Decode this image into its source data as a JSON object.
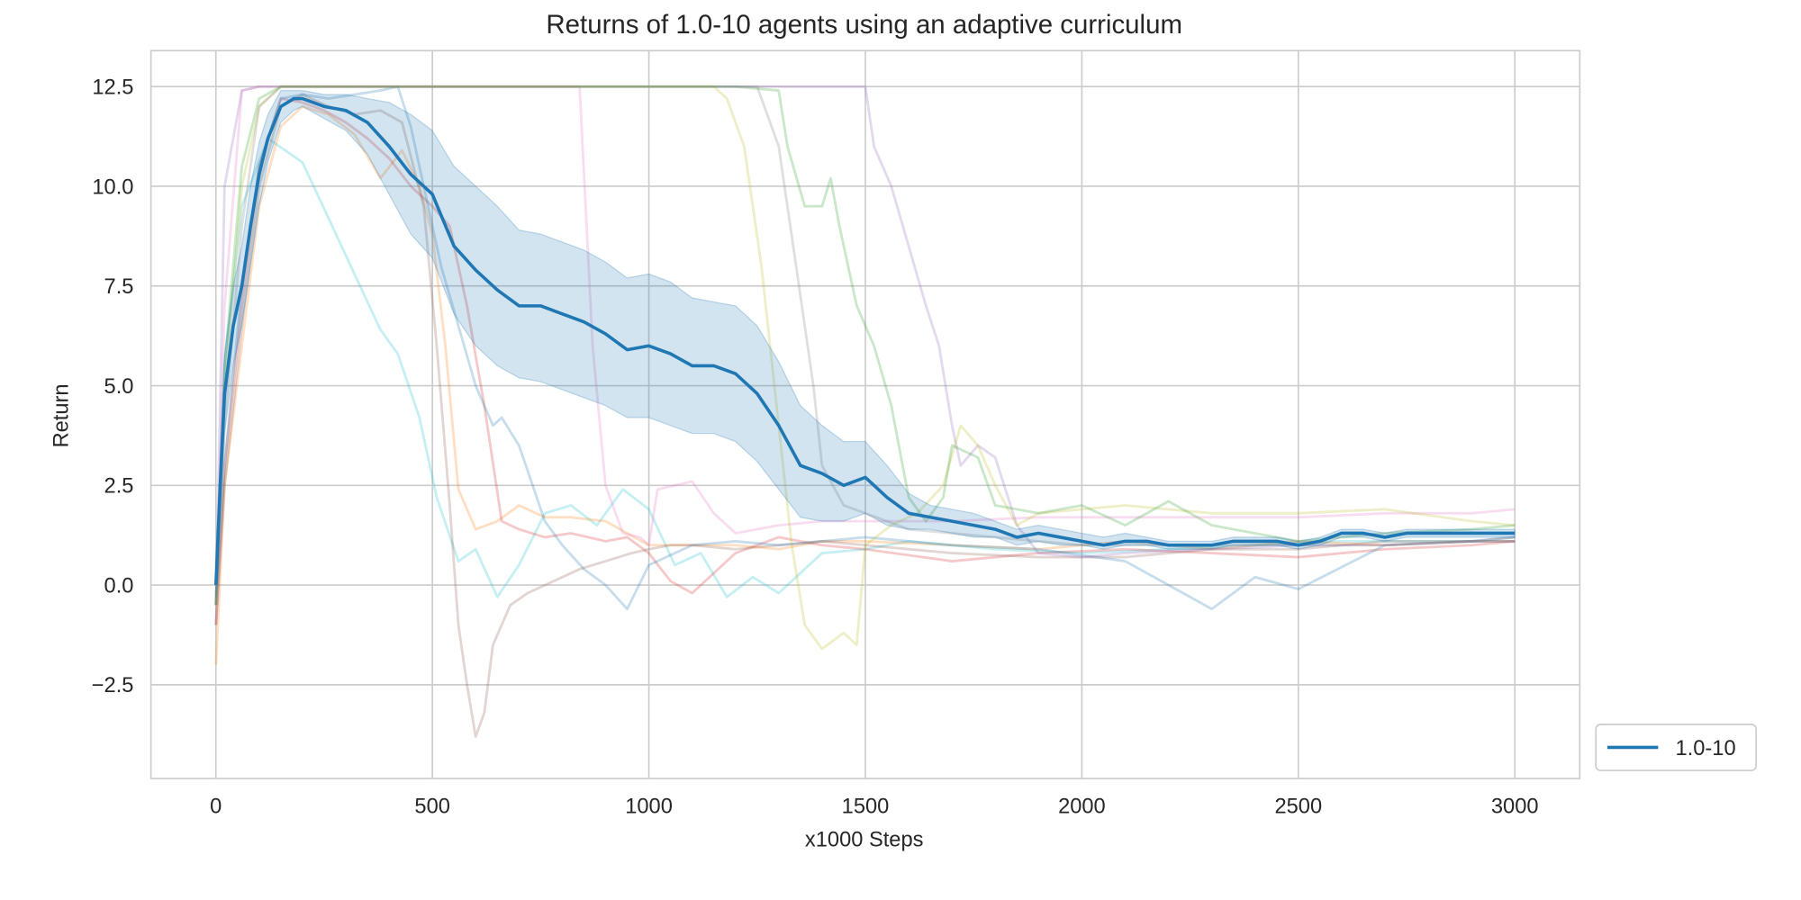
{
  "chart_data": {
    "type": "line",
    "title": "Returns of 1.0-10 agents using an adaptive curriculum",
    "xlabel": "x1000 Steps",
    "ylabel": "Return",
    "xlim": [
      -150,
      3150
    ],
    "ylim": [
      -4.85,
      13.4
    ],
    "xticks": [
      0,
      500,
      1000,
      1500,
      2000,
      2500,
      3000
    ],
    "xtick_labels": [
      "0",
      "500",
      "1000",
      "1500",
      "2000",
      "2500",
      "3000"
    ],
    "yticks": [
      -2.5,
      0.0,
      2.5,
      5.0,
      7.5,
      10.0,
      12.5
    ],
    "ytick_labels": [
      "−2.5",
      "0.0",
      "2.5",
      "5.0",
      "7.5",
      "10.0",
      "12.5"
    ],
    "grid": true,
    "legend_position": "outside-lower-right",
    "legend": [
      {
        "label": "1.0-10",
        "color": "#1f77b4"
      }
    ],
    "mean_series": {
      "name": "1.0-10",
      "color": "#1f77b4",
      "x": [
        0,
        10,
        20,
        40,
        60,
        80,
        100,
        120,
        150,
        180,
        200,
        250,
        300,
        350,
        400,
        450,
        500,
        550,
        600,
        650,
        700,
        750,
        800,
        850,
        900,
        950,
        1000,
        1050,
        1100,
        1150,
        1200,
        1250,
        1300,
        1350,
        1400,
        1450,
        1500,
        1550,
        1600,
        1650,
        1700,
        1750,
        1800,
        1850,
        1900,
        1950,
        2000,
        2050,
        2100,
        2150,
        2200,
        2250,
        2300,
        2350,
        2400,
        2450,
        2500,
        2550,
        2600,
        2650,
        2700,
        2750,
        2800,
        2850,
        2900,
        2950,
        3000
      ],
      "y": [
        0.0,
        2.5,
        4.8,
        6.5,
        7.5,
        9.0,
        10.3,
        11.2,
        12.0,
        12.2,
        12.2,
        12.0,
        11.9,
        11.6,
        11.0,
        10.3,
        9.8,
        8.5,
        7.9,
        7.4,
        7.0,
        7.0,
        6.8,
        6.6,
        6.3,
        5.9,
        6.0,
        5.8,
        5.5,
        5.5,
        5.3,
        4.8,
        4.0,
        3.0,
        2.8,
        2.5,
        2.7,
        2.2,
        1.8,
        1.7,
        1.6,
        1.5,
        1.4,
        1.2,
        1.3,
        1.2,
        1.1,
        1.0,
        1.1,
        1.1,
        1.0,
        1.0,
        1.0,
        1.1,
        1.1,
        1.1,
        1.0,
        1.1,
        1.3,
        1.3,
        1.2,
        1.3,
        1.3,
        1.3,
        1.3,
        1.3,
        1.3
      ],
      "band_lower": [
        -0.3,
        1.8,
        3.8,
        5.5,
        6.5,
        8.0,
        9.5,
        10.6,
        11.6,
        11.9,
        12.0,
        11.7,
        11.4,
        10.8,
        9.8,
        8.8,
        8.2,
        6.8,
        6.0,
        5.5,
        5.2,
        5.1,
        4.9,
        4.7,
        4.5,
        4.2,
        4.2,
        4.0,
        3.8,
        3.8,
        3.6,
        3.1,
        2.4,
        1.7,
        1.6,
        1.6,
        1.8,
        1.5,
        1.4,
        1.4,
        1.3,
        1.2,
        1.2,
        1.0,
        1.1,
        1.0,
        1.0,
        0.9,
        1.0,
        1.0,
        0.9,
        0.9,
        0.9,
        1.0,
        1.0,
        1.0,
        0.9,
        1.0,
        1.2,
        1.2,
        1.1,
        1.2,
        1.2,
        1.2,
        1.2,
        1.2,
        1.2
      ],
      "band_upper": [
        0.3,
        3.2,
        5.8,
        7.5,
        8.5,
        10.0,
        11.1,
        11.8,
        12.4,
        12.4,
        12.4,
        12.3,
        12.3,
        12.2,
        12.1,
        11.8,
        11.4,
        10.5,
        10.0,
        9.5,
        8.9,
        8.8,
        8.6,
        8.4,
        8.1,
        7.7,
        7.8,
        7.6,
        7.2,
        7.1,
        7.0,
        6.5,
        5.6,
        4.5,
        4.0,
        3.6,
        3.6,
        3.0,
        2.3,
        2.0,
        1.9,
        1.8,
        1.6,
        1.4,
        1.5,
        1.4,
        1.3,
        1.2,
        1.3,
        1.2,
        1.1,
        1.1,
        1.1,
        1.2,
        1.2,
        1.2,
        1.1,
        1.2,
        1.4,
        1.4,
        1.3,
        1.4,
        1.4,
        1.4,
        1.4,
        1.4,
        1.4
      ]
    },
    "individual_runs": [
      {
        "color": "#17becf",
        "x": [
          0,
          20,
          60,
          120,
          200,
          260,
          320,
          380,
          420,
          470,
          510,
          560,
          600,
          650,
          700,
          760,
          820,
          880,
          940,
          1000,
          1060,
          1120,
          1180,
          1240,
          1300,
          1400,
          1500,
          1600,
          1800,
          2000,
          2200,
          2400,
          2600,
          2800,
          3000
        ],
        "y": [
          -0.5,
          5.5,
          9.5,
          11.2,
          10.6,
          9.2,
          7.8,
          6.4,
          5.8,
          4.2,
          2.2,
          0.6,
          0.9,
          -0.3,
          0.5,
          1.8,
          2.0,
          1.5,
          2.4,
          1.9,
          0.5,
          0.8,
          -0.3,
          0.2,
          -0.2,
          0.8,
          0.9,
          1.1,
          0.9,
          0.8,
          0.9,
          1.0,
          1.1,
          1.1,
          1.1
        ]
      },
      {
        "color": "#ff7f0e",
        "x": [
          0,
          20,
          60,
          100,
          150,
          200,
          260,
          320,
          380,
          430,
          470,
          500,
          530,
          560,
          600,
          650,
          700,
          760,
          820,
          900,
          1000,
          1100,
          1200,
          1300,
          1400,
          1500,
          1700,
          1900,
          2100,
          2300,
          2500,
          2700,
          2900,
          3000
        ],
        "y": [
          -2.0,
          2.5,
          6.0,
          9.5,
          11.5,
          12.0,
          11.8,
          11.3,
          10.2,
          10.9,
          10.0,
          8.8,
          6.0,
          2.4,
          1.4,
          1.6,
          2.0,
          1.7,
          1.7,
          1.6,
          1.0,
          1.0,
          1.0,
          0.9,
          1.1,
          1.1,
          1.0,
          0.9,
          1.1,
          0.9,
          1.1,
          1.0,
          1.1,
          1.1
        ]
      },
      {
        "color": "#d62728",
        "x": [
          0,
          20,
          60,
          100,
          150,
          200,
          250,
          300,
          350,
          400,
          450,
          500,
          540,
          580,
          620,
          660,
          700,
          760,
          820,
          900,
          950,
          1000,
          1050,
          1100,
          1150,
          1200,
          1300,
          1400,
          1500,
          1700,
          1900,
          2100,
          2300,
          2500,
          2700,
          2900,
          3000
        ],
        "y": [
          -1.0,
          3.0,
          7.0,
          10.5,
          12.2,
          12.1,
          11.9,
          11.6,
          11.2,
          10.7,
          10.0,
          9.5,
          9.0,
          7.0,
          4.5,
          1.6,
          1.4,
          1.2,
          1.3,
          1.1,
          1.2,
          0.8,
          0.1,
          -0.2,
          0.3,
          0.8,
          1.2,
          1.0,
          0.9,
          0.6,
          0.8,
          0.9,
          0.8,
          0.7,
          0.9,
          1.0,
          1.1
        ]
      },
      {
        "color": "#8c564b",
        "x": [
          0,
          20,
          60,
          100,
          150,
          200,
          260,
          320,
          380,
          430,
          480,
          510,
          540,
          560,
          580,
          600,
          620,
          640,
          680,
          720,
          780,
          840,
          900,
          960,
          1000,
          1050,
          1100,
          1200,
          1300,
          1400,
          1500,
          1700,
          1900,
          2100,
          2300,
          2500,
          2700,
          2900,
          3000
        ],
        "y": [
          -1.0,
          2.5,
          6.5,
          10.0,
          12.0,
          12.3,
          12.0,
          11.8,
          11.9,
          11.6,
          9.5,
          6.0,
          2.0,
          -1.0,
          -2.5,
          -3.8,
          -3.2,
          -1.5,
          -0.5,
          -0.2,
          0.1,
          0.4,
          0.6,
          0.8,
          0.9,
          1.0,
          1.0,
          0.9,
          1.0,
          1.1,
          1.0,
          0.8,
          0.7,
          0.7,
          0.9,
          0.9,
          1.1,
          1.1,
          1.2
        ]
      },
      {
        "color": "#1f77b4",
        "x": [
          0,
          20,
          60,
          100,
          150,
          200,
          260,
          320,
          380,
          420,
          450,
          480,
          520,
          560,
          600,
          640,
          660,
          700,
          760,
          800,
          850,
          900,
          950,
          1000,
          1100,
          1200,
          1300,
          1400,
          1500,
          1700,
          1900,
          2100,
          2200,
          2300,
          2400,
          2500,
          2700,
          2900,
          3000
        ],
        "y": [
          -0.5,
          3.0,
          7.5,
          10.5,
          12.2,
          12.3,
          12.2,
          12.3,
          12.4,
          12.5,
          11.5,
          10.0,
          8.0,
          6.5,
          5.0,
          4.0,
          4.2,
          3.5,
          1.6,
          1.0,
          0.4,
          0.0,
          -0.6,
          0.5,
          1.0,
          1.1,
          1.0,
          1.1,
          1.2,
          1.0,
          0.9,
          0.6,
          0.0,
          -0.6,
          0.2,
          -0.1,
          1.0,
          1.1,
          1.2
        ]
      },
      {
        "color": "#e377c2",
        "x": [
          0,
          20,
          60,
          100,
          150,
          200,
          300,
          400,
          500,
          600,
          700,
          800,
          840,
          870,
          900,
          940,
          980,
          1000,
          1020,
          1060,
          1100,
          1150,
          1200,
          1300,
          1400,
          1500,
          1700,
          1900,
          2100,
          2300,
          2500,
          2700,
          2900,
          3000
        ],
        "y": [
          -0.5,
          7.0,
          12.4,
          12.5,
          12.5,
          12.5,
          12.5,
          12.5,
          12.5,
          12.5,
          12.5,
          12.5,
          12.5,
          6.0,
          2.5,
          1.3,
          1.2,
          1.0,
          2.4,
          2.5,
          2.6,
          1.8,
          1.3,
          1.5,
          1.6,
          1.6,
          1.6,
          1.7,
          1.7,
          1.7,
          1.7,
          1.8,
          1.8,
          1.9
        ]
      },
      {
        "color": "#9467bd",
        "x": [
          0,
          20,
          60,
          100,
          150,
          200,
          300,
          400,
          500,
          600,
          700,
          800,
          900,
          1000,
          1100,
          1200,
          1300,
          1400,
          1500,
          1520,
          1560,
          1600,
          1640,
          1670,
          1700,
          1720,
          1760,
          1800,
          1850,
          1900,
          2000,
          2100,
          2300,
          2500,
          2700,
          2900,
          3000
        ],
        "y": [
          -0.5,
          10.0,
          12.4,
          12.5,
          12.5,
          12.5,
          12.5,
          12.5,
          12.5,
          12.5,
          12.5,
          12.5,
          12.5,
          12.5,
          12.5,
          12.5,
          12.5,
          12.5,
          12.5,
          11.0,
          10.0,
          8.5,
          7.0,
          6.0,
          4.0,
          3.0,
          3.5,
          3.2,
          1.5,
          0.8,
          0.7,
          0.8,
          0.9,
          1.0,
          1.0,
          1.1,
          1.1
        ]
      },
      {
        "color": "#bcbd22",
        "x": [
          0,
          20,
          60,
          100,
          150,
          200,
          300,
          400,
          500,
          600,
          700,
          800,
          900,
          1000,
          1100,
          1150,
          1180,
          1220,
          1260,
          1300,
          1330,
          1360,
          1400,
          1450,
          1480,
          1500,
          1560,
          1620,
          1680,
          1720,
          1760,
          1800,
          1850,
          1900,
          2000,
          2100,
          2300,
          2500,
          2700,
          2900,
          3000
        ],
        "y": [
          -0.5,
          5.0,
          10.0,
          12.0,
          12.5,
          12.5,
          12.5,
          12.5,
          12.5,
          12.5,
          12.5,
          12.5,
          12.5,
          12.5,
          12.5,
          12.5,
          12.2,
          11.0,
          8.0,
          4.0,
          1.0,
          -1.0,
          -1.6,
          -1.2,
          -1.5,
          1.0,
          1.5,
          1.8,
          2.5,
          4.0,
          3.5,
          2.5,
          1.5,
          1.8,
          1.9,
          2.0,
          1.8,
          1.8,
          1.9,
          1.6,
          1.5
        ]
      },
      {
        "color": "#2ca02c",
        "x": [
          0,
          20,
          60,
          100,
          150,
          200,
          300,
          400,
          500,
          600,
          700,
          800,
          900,
          1000,
          1100,
          1200,
          1300,
          1320,
          1360,
          1400,
          1420,
          1440,
          1480,
          1520,
          1560,
          1600,
          1640,
          1680,
          1700,
          1760,
          1800,
          1900,
          2000,
          2100,
          2200,
          2300,
          2500,
          2700,
          2900,
          3000
        ],
        "y": [
          -0.5,
          5.5,
          10.5,
          12.2,
          12.5,
          12.5,
          12.5,
          12.5,
          12.5,
          12.5,
          12.5,
          12.5,
          12.5,
          12.5,
          12.5,
          12.5,
          12.4,
          11.0,
          9.5,
          9.5,
          10.2,
          9.0,
          7.0,
          6.0,
          4.5,
          2.2,
          1.6,
          2.2,
          3.5,
          3.2,
          2.0,
          1.8,
          2.0,
          1.5,
          2.1,
          1.5,
          1.1,
          1.3,
          1.4,
          1.5
        ]
      },
      {
        "color": "#7f7f7f",
        "x": [
          0,
          20,
          60,
          100,
          150,
          200,
          300,
          400,
          500,
          600,
          700,
          800,
          900,
          1000,
          1100,
          1200,
          1250,
          1300,
          1340,
          1380,
          1400,
          1450,
          1500,
          1600,
          1700,
          1800,
          1900,
          2000,
          2100,
          2300,
          2500,
          2700,
          2900,
          3000
        ],
        "y": [
          -0.5,
          4.0,
          9.0,
          12.0,
          12.5,
          12.5,
          12.5,
          12.5,
          12.5,
          12.5,
          12.5,
          12.5,
          12.5,
          12.5,
          12.5,
          12.5,
          12.5,
          11.0,
          8.0,
          5.0,
          3.0,
          2.0,
          1.8,
          1.4,
          1.3,
          1.2,
          1.1,
          1.0,
          1.0,
          1.0,
          1.0,
          1.0,
          1.1,
          1.1
        ]
      }
    ]
  }
}
